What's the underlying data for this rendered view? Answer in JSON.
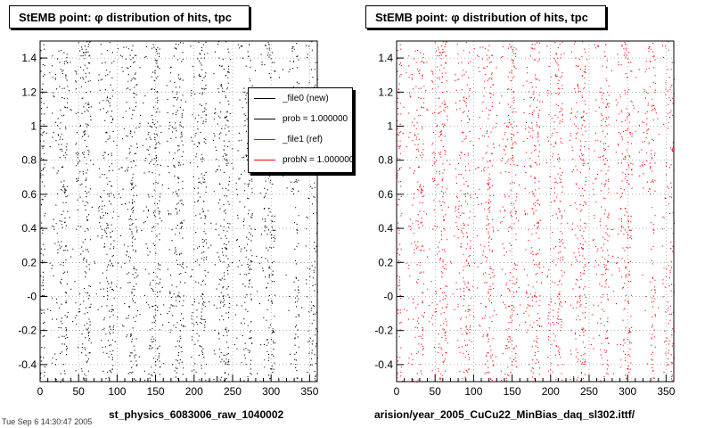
{
  "panels": [
    {
      "title": "StEMB point:  φ distribution of hits, tpc",
      "footer": "st_physics_6083006_raw_1040002",
      "color": "#000000"
    },
    {
      "title": "StEMB point:  φ distribution of hits, tpc",
      "footer": "arision/year_2005_CuCu22_MinBias_daq_sl302.ittf/",
      "color": "#ff0000"
    }
  ],
  "legend": {
    "entries": [
      {
        "label": "_file0 (new)",
        "color": "#000000"
      },
      {
        "label": "prob = 1.000000",
        "color": "#000000"
      },
      {
        "label": "_file1 (ref)",
        "color": "#ff0000"
      },
      {
        "label": "probN = 1.000000",
        "color": "#ff0000"
      }
    ]
  },
  "stamp": "Tue Sep  6 14:30:47 2005",
  "chart_data": [
    {
      "type": "scatter",
      "title": "StEMB point:  φ distribution of hits, tpc",
      "xlabel": "st_physics_6083006_raw_1040002",
      "ylabel": "",
      "xlim": [
        0,
        360
      ],
      "ylim": [
        -0.5,
        1.5
      ],
      "x_ticks": [
        "0",
        "50",
        "100",
        "150",
        "200",
        "250",
        "300",
        "350"
      ],
      "y_ticks": [
        "-0.4",
        "-0.2",
        "-0",
        "0.2",
        "0.4",
        "0.6",
        "0.8",
        "1",
        "1.2",
        "1.4"
      ],
      "grid": true,
      "series": [
        {
          "name": "_file0 (new)",
          "color": "#000000",
          "n_points": 12000,
          "sector_gaps_deg": [
            10,
            40,
            70,
            100,
            130,
            160,
            190,
            220,
            250,
            280,
            310,
            340
          ],
          "low_density_region": {
            "x": [
              305,
              330
            ],
            "y": [
              -0.5,
              0.6
            ]
          }
        }
      ]
    },
    {
      "type": "scatter",
      "title": "StEMB point:  φ distribution of hits, tpc",
      "xlabel": "arision/year_2005_CuCu22_MinBias_daq_sl302.ittf/",
      "ylabel": "",
      "xlim": [
        0,
        360
      ],
      "ylim": [
        -0.5,
        1.5
      ],
      "x_ticks": [
        "0",
        "50",
        "100",
        "150",
        "200",
        "250",
        "300",
        "350"
      ],
      "y_ticks": [
        "-0.4",
        "-0.2",
        "-0",
        "0.2",
        "0.4",
        "0.6",
        "0.8",
        "1",
        "1.2",
        "1.4"
      ],
      "grid": true,
      "series": [
        {
          "name": "_file1 (ref)",
          "color": "#ff0000",
          "n_points": 12000,
          "sector_gaps_deg": [
            10,
            40,
            70,
            100,
            130,
            160,
            190,
            220,
            250,
            280,
            310,
            340
          ],
          "low_density_region": {
            "x": [
              305,
              330
            ],
            "y": [
              -0.5,
              0.6
            ]
          }
        }
      ]
    }
  ]
}
